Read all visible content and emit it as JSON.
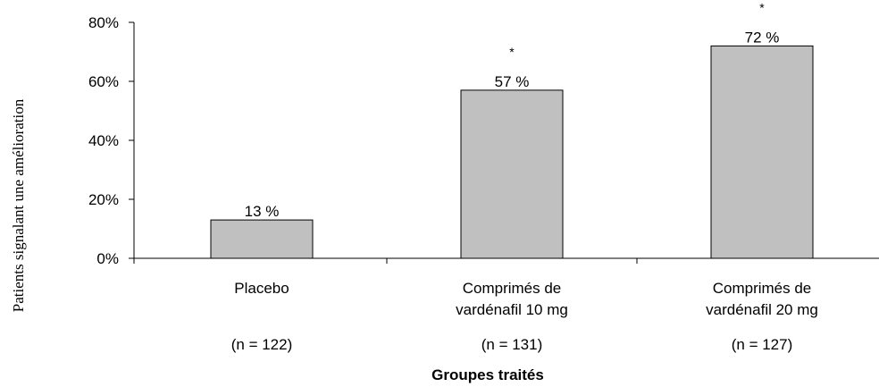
{
  "chart_data": {
    "type": "bar",
    "categories": [
      [
        "Placebo"
      ],
      [
        "Comprimés de",
        "vardénafil 10 mg"
      ],
      [
        "Comprimés de",
        "vardénafil 20 mg"
      ]
    ],
    "sample_sizes": [
      "(n = 122)",
      "(n = 131)",
      "(n = 127)"
    ],
    "values": [
      13,
      57,
      72
    ],
    "value_labels": [
      "13 %",
      "57 %",
      "72 %"
    ],
    "significance": [
      "",
      "*",
      "*"
    ],
    "xlabel": "Groupes traités",
    "ylabel": "Patients signalant une amélioration",
    "ylim": [
      0,
      80
    ],
    "yticks": [
      0,
      20,
      40,
      60,
      80
    ],
    "ytick_labels": [
      "0%",
      "20%",
      "40%",
      "60%",
      "80%"
    ],
    "bar_color": "#c0c0c0",
    "bar_edge_color": "#000000",
    "grid": false,
    "legend": "none"
  }
}
